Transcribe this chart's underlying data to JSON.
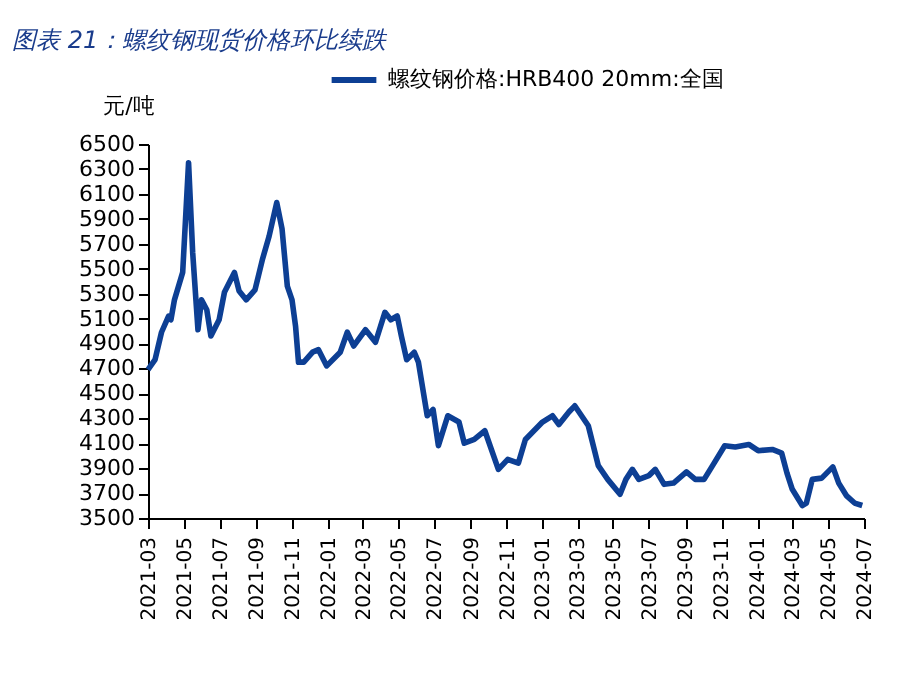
{
  "chart_data": {
    "type": "line",
    "title": "图表 21：螺纹钢现货价格环比续跌",
    "ylabel": "元/吨",
    "legend": "top",
    "grid": false,
    "xlim": [
      "2021-03-01",
      "2024-07-01"
    ],
    "xticks": [
      "2021-03",
      "2021-05",
      "2021-07",
      "2021-09",
      "2021-11",
      "2022-01",
      "2022-03",
      "2022-05",
      "2022-07",
      "2022-09",
      "2022-11",
      "2023-01",
      "2023-03",
      "2023-05",
      "2023-07",
      "2023-09",
      "2023-11",
      "2024-01",
      "2024-03",
      "2024-05",
      "2024-07"
    ],
    "ylim": [
      3500,
      6500
    ],
    "yticks": [
      3500,
      3700,
      3900,
      4100,
      4300,
      4500,
      4700,
      4900,
      5100,
      5300,
      5500,
      5700,
      5900,
      6100,
      6300,
      6500
    ],
    "x": [
      "2021-03-01",
      "2021-03-13",
      "2021-03-24",
      "2021-04-05",
      "2021-04-09",
      "2021-04-15",
      "2021-04-29",
      "2021-05-09",
      "2021-05-16",
      "2021-05-25",
      "2021-05-31",
      "2021-06-09",
      "2021-06-16",
      "2021-06-30",
      "2021-07-09",
      "2021-07-26",
      "2021-08-03",
      "2021-08-15",
      "2021-08-30",
      "2021-09-12",
      "2021-09-23",
      "2021-10-06",
      "2021-10-15",
      "2021-10-24",
      "2021-11-01",
      "2021-11-07",
      "2021-11-12",
      "2021-11-21",
      "2021-12-06",
      "2021-12-16",
      "2021-12-30",
      "2022-01-22",
      "2022-02-03",
      "2022-02-14",
      "2022-03-06",
      "2022-03-23",
      "2022-04-08",
      "2022-04-18",
      "2022-04-29",
      "2022-05-06",
      "2022-05-15",
      "2022-05-28",
      "2022-06-04",
      "2022-06-19",
      "2022-06-29",
      "2022-07-08",
      "2022-07-24",
      "2022-08-12",
      "2022-08-21",
      "2022-09-07",
      "2022-09-25",
      "2022-10-18",
      "2022-11-03",
      "2022-11-21",
      "2022-12-03",
      "2023-01-01",
      "2023-01-18",
      "2023-01-29",
      "2023-02-15",
      "2023-02-25",
      "2023-03-20",
      "2023-04-06",
      "2023-04-22",
      "2023-05-13",
      "2023-05-23",
      "2023-06-03",
      "2023-06-14",
      "2023-07-01",
      "2023-07-12",
      "2023-07-27",
      "2023-08-12",
      "2023-09-03",
      "2023-09-18",
      "2023-10-03",
      "2023-10-20",
      "2023-11-07",
      "2023-11-25",
      "2023-12-18",
      "2024-01-03",
      "2024-01-27",
      "2024-02-12",
      "2024-02-21",
      "2024-03-01",
      "2024-03-18",
      "2024-03-25",
      "2024-04-04",
      "2024-04-20",
      "2024-05-09",
      "2024-05-19",
      "2024-06-01",
      "2024-06-15",
      "2024-06-28"
    ],
    "series": [
      {
        "name": "螺纹钢价格:HRB400 20mm:全国",
        "color": "#0d3f94",
        "values": [
          4690,
          4770,
          4990,
          5120,
          5090,
          5250,
          5470,
          6350,
          5630,
          5010,
          5250,
          5170,
          4960,
          5090,
          5310,
          5470,
          5320,
          5250,
          5330,
          5580,
          5760,
          6030,
          5820,
          5360,
          5250,
          5040,
          4750,
          4750,
          4830,
          4850,
          4720,
          4830,
          4990,
          4880,
          5010,
          4910,
          5150,
          5090,
          5120,
          4960,
          4770,
          4830,
          4750,
          4320,
          4370,
          4080,
          4320,
          4270,
          4100,
          4130,
          4200,
          3890,
          3970,
          3940,
          4130,
          4270,
          4320,
          4250,
          4350,
          4400,
          4240,
          3920,
          3810,
          3690,
          3810,
          3890,
          3810,
          3840,
          3890,
          3770,
          3780,
          3870,
          3810,
          3810,
          3940,
          4080,
          4070,
          4090,
          4040,
          4050,
          4020,
          3860,
          3730,
          3600,
          3620,
          3810,
          3820,
          3910,
          3780,
          3680,
          3620,
          3600
        ]
      }
    ]
  }
}
